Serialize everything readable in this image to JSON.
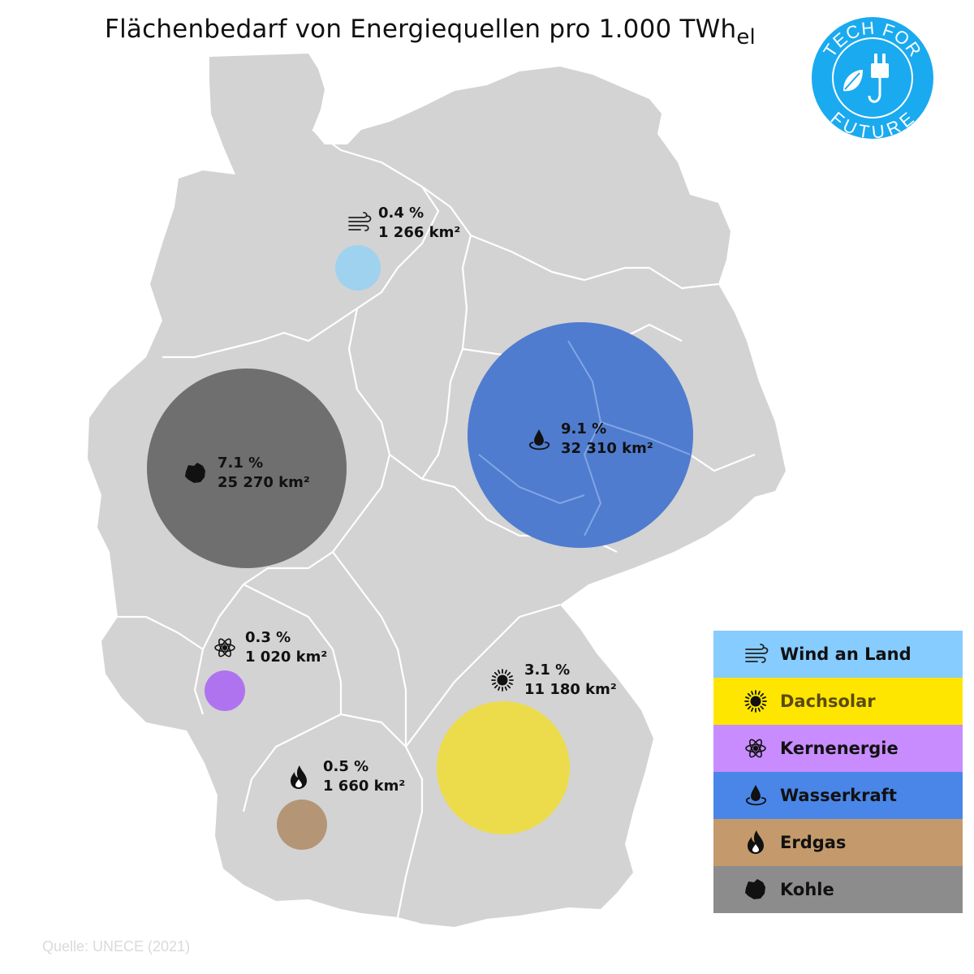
{
  "title": {
    "main": "Flächenbedarf von Energiequellen pro 1.000 TWh",
    "sub": "el"
  },
  "logo": {
    "top_text": "TECH FOR",
    "bottom_text": "FUTURE",
    "color": "#1aaaf0",
    "icon": "plug-leaf-icon"
  },
  "source": "Quelle: UNECE (2021)",
  "markers": [
    {
      "key": "wind",
      "percent": "0.4 %",
      "area": "1 266 km²",
      "icon": "wind-icon",
      "color": "#9fd2ee"
    },
    {
      "key": "coal",
      "percent": "7.1 %",
      "area": "25 270 km²",
      "icon": "coal-icon",
      "color": "#6f6f6f"
    },
    {
      "key": "hydro",
      "percent": "9.1 %",
      "area": "32 310 km²",
      "icon": "water-drop-icon",
      "color": "#4f7ccf"
    },
    {
      "key": "nuclear",
      "percent": "0.3 %",
      "area": "1 020 km²",
      "icon": "atom-icon",
      "color": "#b073ef"
    },
    {
      "key": "solar",
      "percent": "3.1 %",
      "area": "11 180 km²",
      "icon": "sun-icon",
      "color": "#ecdc4c"
    },
    {
      "key": "gas",
      "percent": "0.5 %",
      "area": "1 660 km²",
      "icon": "flame-icon",
      "color": "#b49676"
    }
  ],
  "legend": [
    {
      "label": "Wind an Land",
      "icon": "wind-icon",
      "bg": "#87ccff",
      "fg": "#111111"
    },
    {
      "label": "Dachsolar",
      "icon": "sun-icon",
      "bg": "#ffe600",
      "fg": "#5a4a10"
    },
    {
      "label": "Kernenergie",
      "icon": "atom-icon",
      "bg": "#c88cff",
      "fg": "#111111"
    },
    {
      "label": "Wasserkraft",
      "icon": "water-drop-icon",
      "bg": "#4a86e8",
      "fg": "#111111"
    },
    {
      "label": "Erdgas",
      "icon": "flame-icon",
      "bg": "#c49a6c",
      "fg": "#111111"
    },
    {
      "label": "Kohle",
      "icon": "coal-icon",
      "bg": "#8c8c8c",
      "fg": "#111111"
    }
  ],
  "map": {
    "land_color": "#d3d3d3",
    "border_color": "#ffffff"
  }
}
